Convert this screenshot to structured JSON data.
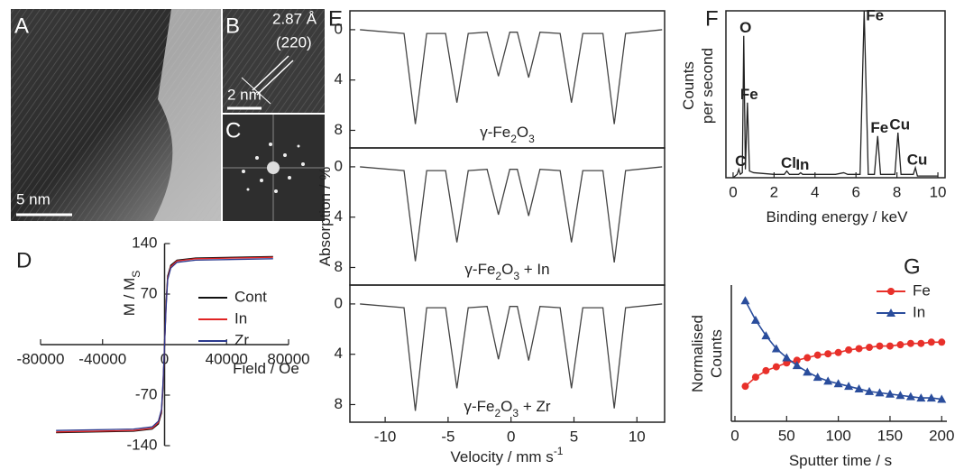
{
  "images": {
    "A": {
      "label": "A",
      "scale": "5 nm"
    },
    "B": {
      "label": "B",
      "d_spacing": "2.87 Å",
      "plane": "(220)",
      "scale": "2 nm"
    },
    "C": {
      "label": "C"
    }
  },
  "chart_data": [
    {
      "type": "line",
      "panel": "D",
      "xlabel": "Field / Oe",
      "ylabel": "M / M",
      "ylabel_sub": "S",
      "axes": "origin",
      "legend": "right",
      "x": [
        -70000,
        -20000,
        -8000,
        -4000,
        -2000,
        -1000,
        0,
        1000,
        2000,
        4000,
        8000,
        20000,
        70000
      ],
      "series": [
        {
          "name": "Cont",
          "color": "#111111",
          "values": [
            -122,
            -120,
            -117,
            -110,
            -95,
            -60,
            0,
            60,
            95,
            110,
            117,
            120,
            122
          ]
        },
        {
          "name": "In",
          "color": "#e02424",
          "values": [
            -121,
            -119,
            -116,
            -108,
            -92,
            -55,
            0,
            55,
            92,
            108,
            116,
            119,
            121
          ]
        },
        {
          "name": "Zr",
          "color": "#2b3a8f",
          "values": [
            -119,
            -117,
            -114,
            -106,
            -90,
            -52,
            0,
            52,
            90,
            106,
            114,
            117,
            119
          ]
        }
      ],
      "xlim": [
        -80000,
        80000
      ],
      "xticks": [
        -80000,
        -40000,
        0,
        40000,
        80000
      ],
      "ylim": [
        -140,
        140
      ],
      "yticks": [
        -140,
        -70,
        70,
        140
      ]
    },
    {
      "type": "line",
      "panel": "E",
      "ylabel": "Absorption / %",
      "label_parts": [
        "γ-Fe",
        "2",
        "O",
        "3"
      ],
      "color": "#444444",
      "x": [
        -12,
        -8.5,
        -7.6,
        -6.7,
        -5.2,
        -4.3,
        -3.4,
        -1.9,
        -1.0,
        -0.1,
        0.5,
        1.4,
        2.3,
        3.9,
        4.8,
        5.7,
        7.3,
        8.2,
        9.1,
        12
      ],
      "values": [
        0,
        0.3,
        7.5,
        0.3,
        0.3,
        5.8,
        0.3,
        0.2,
        3.7,
        0.2,
        0.2,
        3.8,
        0.2,
        0.3,
        5.8,
        0.3,
        0.3,
        7.5,
        0.3,
        0
      ],
      "xlim": [
        -12.8,
        12.2
      ],
      "ylim": [
        9.4,
        -1.5
      ],
      "yticks": [
        0,
        4,
        8
      ]
    },
    {
      "type": "line",
      "label_parts": [
        "γ-Fe",
        "2",
        "O",
        "3",
        " + In"
      ],
      "color": "#444444",
      "x": [
        -12,
        -8.5,
        -7.6,
        -6.7,
        -5.2,
        -4.3,
        -3.4,
        -1.9,
        -1.0,
        -0.1,
        0.5,
        1.4,
        2.3,
        3.9,
        4.8,
        5.7,
        7.3,
        8.2,
        9.1,
        12
      ],
      "values": [
        0,
        0.3,
        7.5,
        0.3,
        0.3,
        6.0,
        0.3,
        0.2,
        3.8,
        0.2,
        0.2,
        3.9,
        0.2,
        0.3,
        6.0,
        0.3,
        0.3,
        7.6,
        0.3,
        0
      ],
      "xlim": [
        -12.8,
        12.2
      ],
      "ylim": [
        9.4,
        -1.5
      ],
      "yticks": [
        0,
        4,
        8
      ]
    },
    {
      "type": "line",
      "label_parts": [
        "γ-Fe",
        "2",
        "O",
        "3",
        " + Zr"
      ],
      "color": "#444444",
      "xlabel": "Velocity / mm s",
      "xlabel_sup": "-1",
      "x": [
        -12,
        -8.5,
        -7.6,
        -6.7,
        -5.2,
        -4.3,
        -3.4,
        -1.9,
        -1.0,
        -0.1,
        0.5,
        1.4,
        2.3,
        3.9,
        4.8,
        5.7,
        7.3,
        8.2,
        9.1,
        12
      ],
      "values": [
        0,
        0.3,
        8.5,
        0.3,
        0.3,
        6.7,
        0.3,
        0.2,
        4.4,
        0.2,
        0.2,
        4.5,
        0.2,
        0.3,
        6.7,
        0.3,
        0.3,
        8.3,
        0.3,
        0
      ],
      "xlim": [
        -12.8,
        12.2
      ],
      "xticks": [
        -10,
        -5,
        0,
        5,
        10
      ],
      "ylim": [
        9.4,
        -1.5
      ],
      "yticks": [
        0,
        4,
        8
      ]
    },
    {
      "type": "line",
      "panel": "F",
      "xlabel": "Binding energy / keV",
      "ylabel": [
        "Counts",
        "per second"
      ],
      "color": "#222222",
      "x": [
        0,
        0.2,
        0.28,
        0.35,
        0.45,
        0.52,
        0.6,
        0.7,
        0.8,
        1.0,
        2.0,
        2.5,
        2.62,
        2.75,
        3.2,
        3.3,
        3.4,
        5.0,
        5.4,
        5.6,
        6.2,
        6.4,
        6.6,
        6.9,
        7.06,
        7.2,
        7.9,
        8.05,
        8.2,
        8.8,
        8.9,
        9.0,
        10
      ],
      "values": [
        0,
        2,
        5,
        2,
        3,
        85,
        5,
        45,
        4,
        3,
        2,
        2,
        4,
        2,
        2,
        3,
        2,
        2,
        3,
        2,
        2,
        100,
        2,
        2,
        25,
        2,
        2,
        27,
        2,
        2,
        6,
        1,
        1
      ],
      "annotations": [
        {
          "text": "O",
          "x": 0.52,
          "y": 85
        },
        {
          "text": "Fe",
          "x": 0.7,
          "y": 45
        },
        {
          "text": "C",
          "x": 0.28,
          "y": 5
        },
        {
          "text": "Cl",
          "x": 2.62,
          "y": 4
        },
        {
          "text": "In",
          "x": 3.3,
          "y": 3
        },
        {
          "text": "Fe",
          "x": 6.4,
          "y": 100
        },
        {
          "text": "Fe",
          "x": 7.06,
          "y": 25
        },
        {
          "text": "Cu",
          "x": 8.05,
          "y": 27
        },
        {
          "text": "Cu",
          "x": 8.9,
          "y": 6
        }
      ],
      "xlim": [
        -0.35,
        10.35
      ],
      "xticks": [
        0,
        2,
        4,
        6,
        8,
        10
      ],
      "ylim": [
        0,
        100
      ]
    },
    {
      "type": "line",
      "panel": "G",
      "xlabel": "Sputter time / s",
      "ylabel": [
        "Normalised",
        "Counts"
      ],
      "legend": "upper right",
      "x": [
        10,
        20,
        30,
        40,
        50,
        60,
        70,
        80,
        90,
        100,
        110,
        120,
        130,
        140,
        150,
        160,
        170,
        180,
        190,
        200
      ],
      "series": [
        {
          "name": "Fe",
          "color": "#e8302a",
          "marker": "circle",
          "values": [
            0.22,
            0.29,
            0.34,
            0.37,
            0.4,
            0.42,
            0.44,
            0.46,
            0.47,
            0.48,
            0.5,
            0.51,
            0.52,
            0.53,
            0.53,
            0.54,
            0.55,
            0.55,
            0.56,
            0.56
          ]
        },
        {
          "name": "In",
          "color": "#2a4d9c",
          "marker": "triangle",
          "values": [
            0.88,
            0.73,
            0.61,
            0.51,
            0.44,
            0.38,
            0.33,
            0.29,
            0.26,
            0.24,
            0.22,
            0.2,
            0.18,
            0.17,
            0.16,
            0.15,
            0.14,
            0.13,
            0.13,
            0.12
          ]
        }
      ],
      "xlim": [
        0,
        205
      ],
      "xticks": [
        0,
        50,
        100,
        150,
        200
      ],
      "ylim": [
        -0.05,
        1.0
      ]
    }
  ]
}
